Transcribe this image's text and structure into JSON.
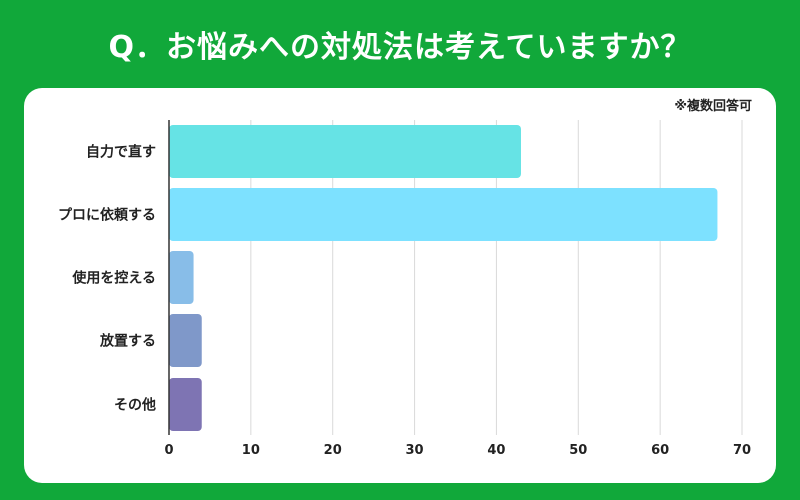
{
  "title": "Q．お悩みへの対処法は考えていますか？",
  "note": "※複数回答可",
  "chart_data": {
    "type": "bar",
    "orientation": "horizontal",
    "categories": [
      "自力で直す",
      "プロに依頼する",
      "使用を控える",
      "放置する",
      "その他"
    ],
    "values": [
      43,
      67,
      3,
      4,
      4
    ],
    "xlim": [
      0,
      70
    ],
    "xticks": [
      0,
      10,
      20,
      30,
      40,
      50,
      60,
      70
    ],
    "grid": true,
    "colors": [
      "#66e3e5",
      "#7de1ff",
      "#88bde8",
      "#7f98c9",
      "#7e74b3"
    ]
  }
}
